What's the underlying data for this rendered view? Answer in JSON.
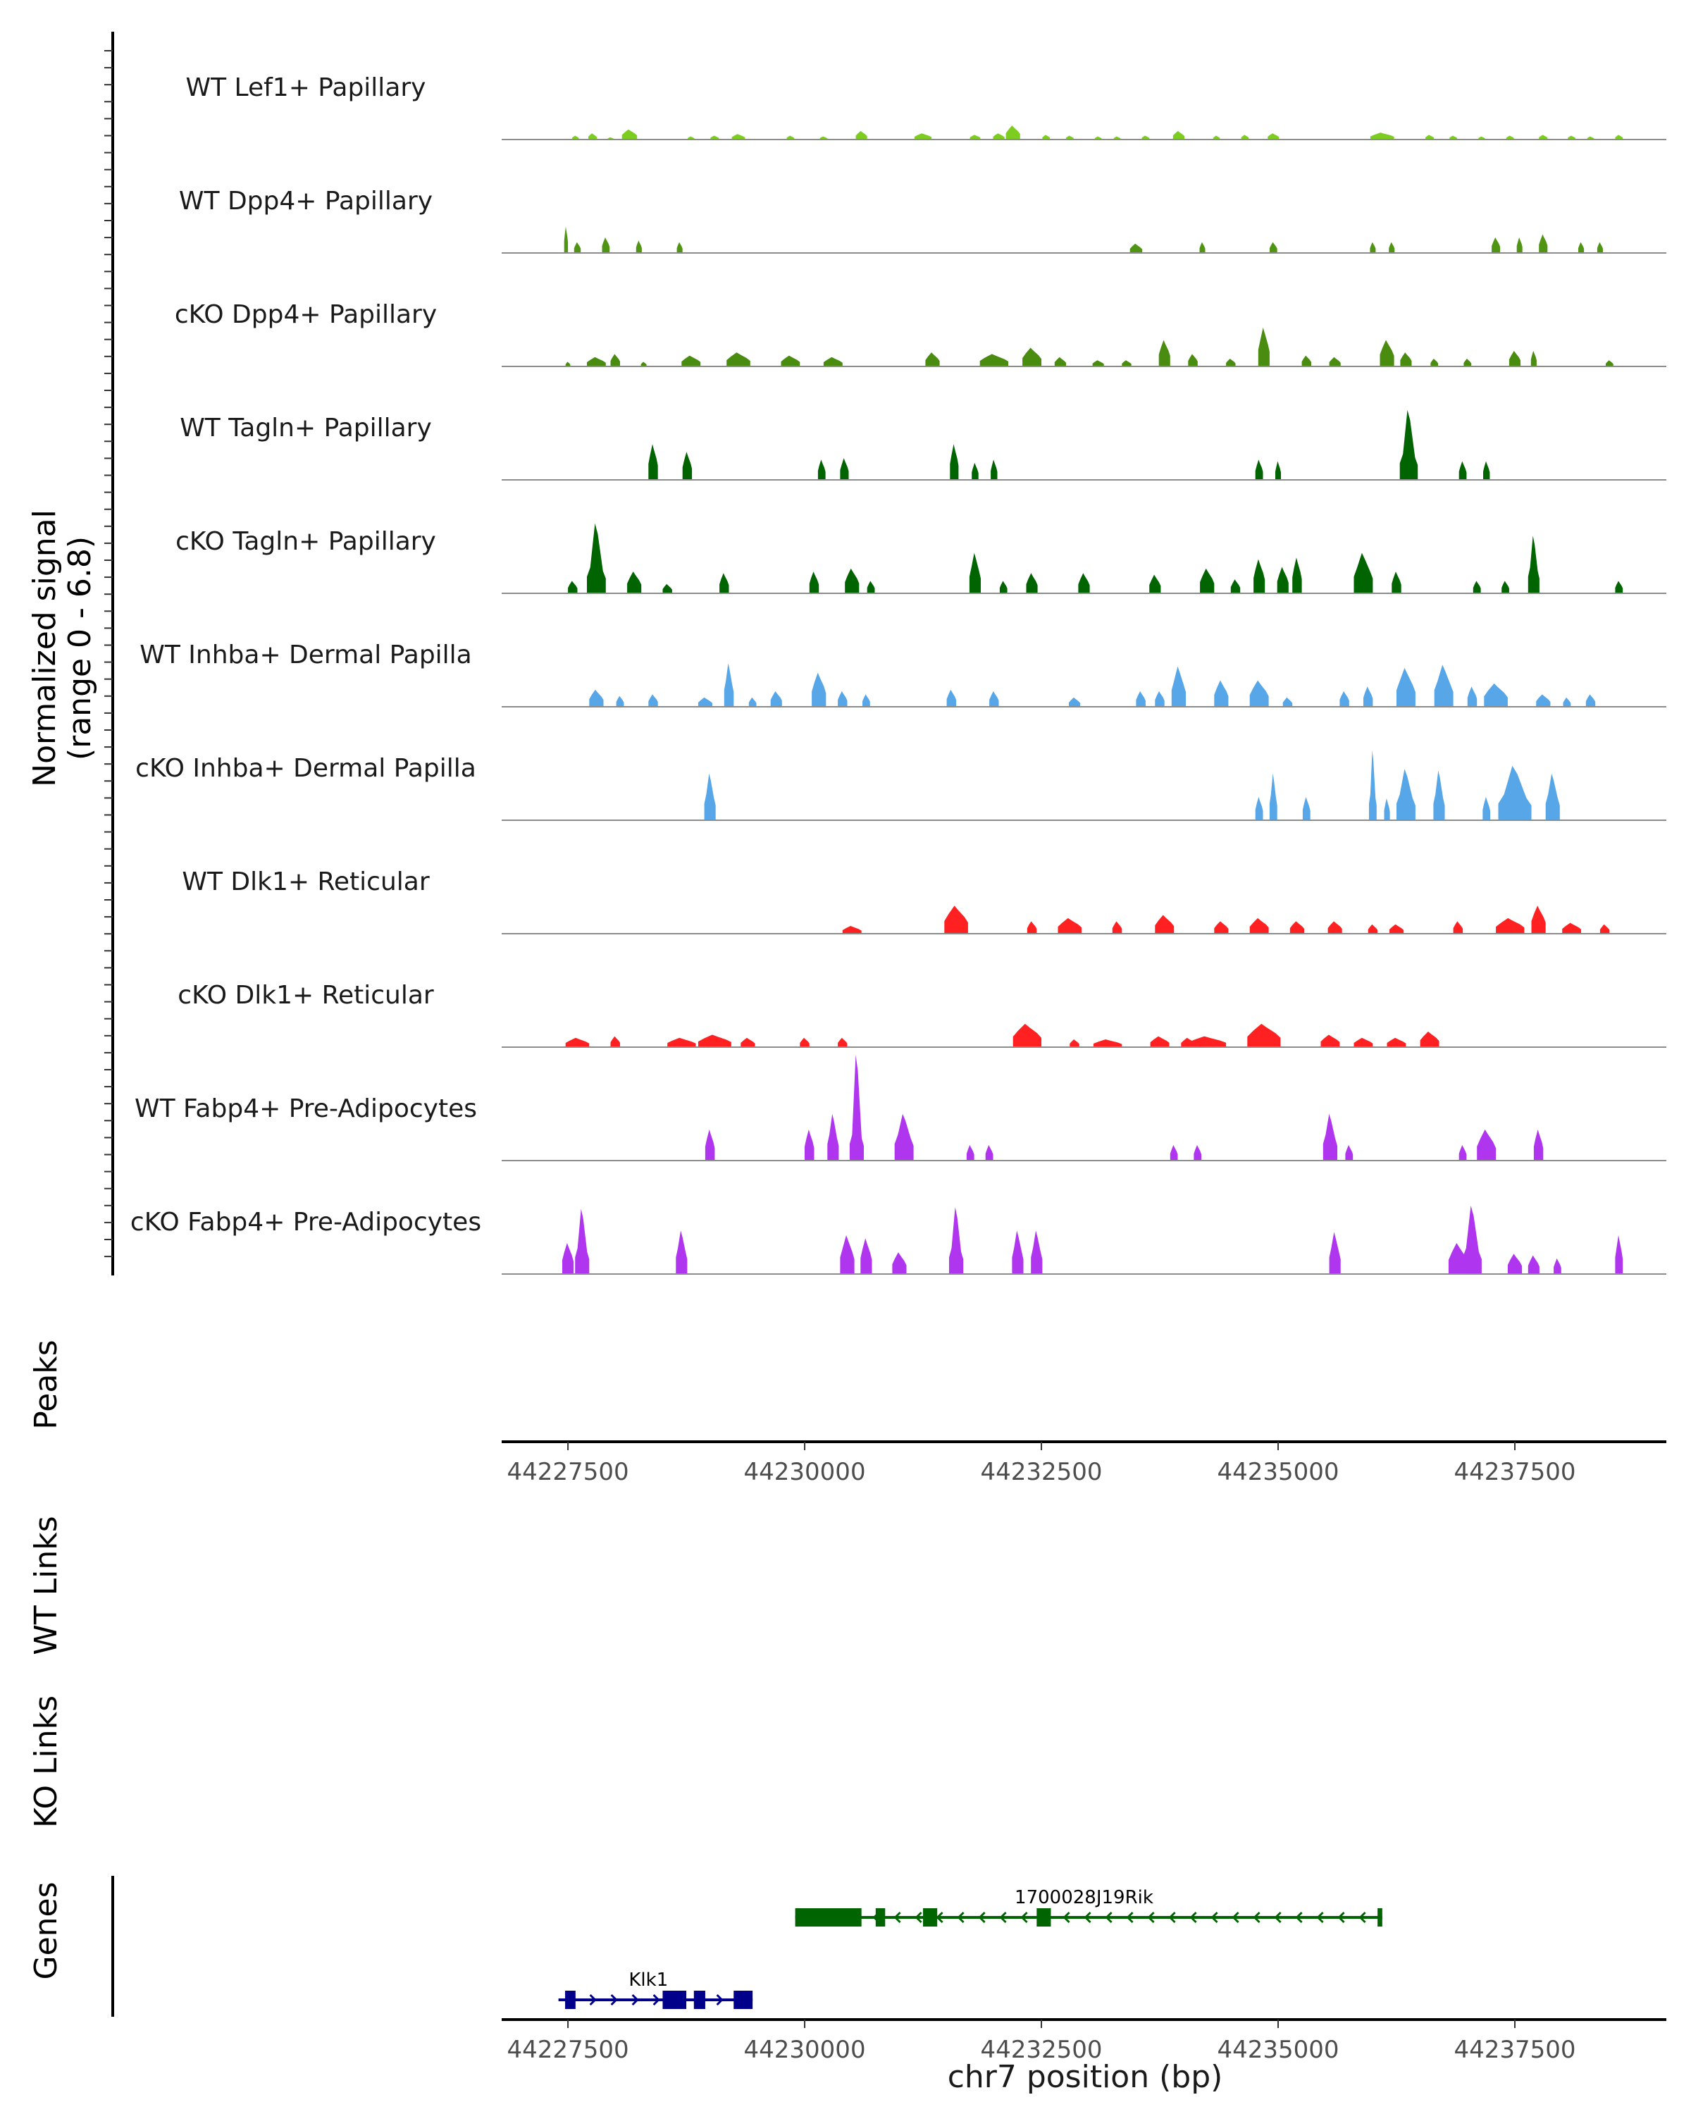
{
  "chart_data": {
    "type": "area",
    "subtype": "genome-coverage-plot",
    "y_axis_label_line1": "Normalized signal",
    "y_axis_label_line2": "(range 0 - 6.8)",
    "y_range": [
      0,
      6.8
    ],
    "x_label": "chr7 position (bp)",
    "x_range": [
      44226800,
      44239100
    ],
    "x_ticks": [
      44227500,
      44230000,
      44232500,
      44235000,
      44237500
    ],
    "tracks": [
      {
        "name": "WT Lef1+ Papillary",
        "color": "#7ccd1f",
        "peaks": [
          [
            44227580,
            0.25,
            70
          ],
          [
            44227760,
            0.4,
            90
          ],
          [
            44227950,
            0.15,
            60
          ],
          [
            44228150,
            0.65,
            160
          ],
          [
            44228800,
            0.2,
            70
          ],
          [
            44229050,
            0.25,
            90
          ],
          [
            44229300,
            0.35,
            140
          ],
          [
            44229850,
            0.25,
            80
          ],
          [
            44230200,
            0.2,
            80
          ],
          [
            44230600,
            0.55,
            120
          ],
          [
            44231250,
            0.4,
            180
          ],
          [
            44231800,
            0.3,
            110
          ],
          [
            44232050,
            0.4,
            120
          ],
          [
            44232200,
            0.9,
            150
          ],
          [
            44232550,
            0.3,
            80
          ],
          [
            44232800,
            0.25,
            80
          ],
          [
            44233100,
            0.2,
            70
          ],
          [
            44233300,
            0.2,
            70
          ],
          [
            44233600,
            0.25,
            80
          ],
          [
            44233950,
            0.55,
            120
          ],
          [
            44234350,
            0.25,
            70
          ],
          [
            44234650,
            0.3,
            80
          ],
          [
            44234950,
            0.4,
            120
          ],
          [
            44236100,
            0.45,
            250
          ],
          [
            44236600,
            0.3,
            90
          ],
          [
            44236850,
            0.25,
            80
          ],
          [
            44237150,
            0.2,
            70
          ],
          [
            44237450,
            0.25,
            80
          ],
          [
            44237800,
            0.3,
            90
          ],
          [
            44238100,
            0.25,
            80
          ],
          [
            44238300,
            0.2,
            70
          ],
          [
            44238600,
            0.3,
            80
          ]
        ]
      },
      {
        "name": "WT Dpp4+ Papillary",
        "color": "#4f9412",
        "peaks": [
          [
            44227480,
            1.7,
            40
          ],
          [
            44227600,
            0.7,
            70
          ],
          [
            44227900,
            1.0,
            80
          ],
          [
            44228250,
            0.8,
            60
          ],
          [
            44228680,
            0.7,
            60
          ],
          [
            44233500,
            0.6,
            130
          ],
          [
            44234200,
            0.7,
            60
          ],
          [
            44234950,
            0.7,
            80
          ],
          [
            44236000,
            0.7,
            60
          ],
          [
            44236200,
            0.7,
            60
          ],
          [
            44237300,
            1.0,
            90
          ],
          [
            44237550,
            1.0,
            60
          ],
          [
            44237800,
            1.2,
            90
          ],
          [
            44238200,
            0.7,
            60
          ],
          [
            44238400,
            0.7,
            60
          ]
        ]
      },
      {
        "name": "cKO Dpp4+ Papillary",
        "color": "#4a8c10",
        "peaks": [
          [
            44227500,
            0.3,
            50
          ],
          [
            44227800,
            0.6,
            200
          ],
          [
            44228000,
            0.8,
            100
          ],
          [
            44228300,
            0.3,
            60
          ],
          [
            44228800,
            0.7,
            200
          ],
          [
            44229300,
            0.9,
            250
          ],
          [
            44229850,
            0.7,
            200
          ],
          [
            44230300,
            0.6,
            200
          ],
          [
            44231350,
            0.9,
            150
          ],
          [
            44232000,
            0.8,
            300
          ],
          [
            44232400,
            1.2,
            200
          ],
          [
            44232700,
            0.6,
            120
          ],
          [
            44233100,
            0.4,
            120
          ],
          [
            44233400,
            0.4,
            100
          ],
          [
            44233800,
            1.7,
            120
          ],
          [
            44234100,
            0.8,
            100
          ],
          [
            44234500,
            0.5,
            100
          ],
          [
            44234850,
            2.5,
            120
          ],
          [
            44235300,
            0.7,
            100
          ],
          [
            44235600,
            0.6,
            120
          ],
          [
            44236150,
            1.7,
            150
          ],
          [
            44236350,
            0.9,
            120
          ],
          [
            44236650,
            0.5,
            80
          ],
          [
            44237000,
            0.5,
            80
          ],
          [
            44237500,
            1.0,
            120
          ],
          [
            44237700,
            1.0,
            60
          ],
          [
            44238500,
            0.4,
            80
          ]
        ]
      },
      {
        "name": "WT Tagln+ Papillary",
        "color": "#006400",
        "peaks": [
          [
            44228400,
            2.3,
            100
          ],
          [
            44228760,
            1.8,
            100
          ],
          [
            44230180,
            1.3,
            80
          ],
          [
            44230420,
            1.4,
            90
          ],
          [
            44231580,
            2.3,
            90
          ],
          [
            44231800,
            1.1,
            70
          ],
          [
            44232000,
            1.3,
            70
          ],
          [
            44234800,
            1.3,
            80
          ],
          [
            44235000,
            1.2,
            60
          ],
          [
            44236380,
            4.5,
            190
          ],
          [
            44236950,
            1.2,
            80
          ],
          [
            44237200,
            1.2,
            70
          ]
        ]
      },
      {
        "name": "cKO Tagln+ Papillary",
        "color": "#006400",
        "peaks": [
          [
            44227550,
            0.8,
            100
          ],
          [
            44227800,
            4.5,
            200
          ],
          [
            44228200,
            1.4,
            150
          ],
          [
            44228550,
            0.6,
            100
          ],
          [
            44229150,
            1.3,
            100
          ],
          [
            44230100,
            1.4,
            100
          ],
          [
            44230500,
            1.6,
            150
          ],
          [
            44230700,
            0.8,
            80
          ],
          [
            44231800,
            2.6,
            120
          ],
          [
            44232100,
            0.8,
            80
          ],
          [
            44232400,
            1.3,
            120
          ],
          [
            44232950,
            1.3,
            120
          ],
          [
            44233700,
            1.2,
            120
          ],
          [
            44234250,
            1.6,
            150
          ],
          [
            44234550,
            0.9,
            100
          ],
          [
            44234800,
            2.2,
            120
          ],
          [
            44235050,
            1.7,
            120
          ],
          [
            44235200,
            2.3,
            100
          ],
          [
            44235900,
            2.6,
            200
          ],
          [
            44236250,
            1.4,
            100
          ],
          [
            44237100,
            0.8,
            80
          ],
          [
            44237400,
            0.8,
            80
          ],
          [
            44237700,
            3.7,
            120
          ],
          [
            44238600,
            0.8,
            80
          ]
        ]
      },
      {
        "name": "WT Inhba+ Dermal Papilla",
        "color": "#56a6e8",
        "peaks": [
          [
            44227800,
            1.1,
            150
          ],
          [
            44228050,
            0.7,
            80
          ],
          [
            44228400,
            0.8,
            100
          ],
          [
            44228950,
            0.6,
            150
          ],
          [
            44229200,
            2.8,
            100
          ],
          [
            44229450,
            0.6,
            80
          ],
          [
            44229700,
            1.0,
            120
          ],
          [
            44230150,
            2.2,
            150
          ],
          [
            44230400,
            1.0,
            100
          ],
          [
            44230650,
            0.8,
            80
          ],
          [
            44231550,
            1.1,
            100
          ],
          [
            44232000,
            1.0,
            100
          ],
          [
            44232850,
            0.6,
            120
          ],
          [
            44233550,
            1.0,
            100
          ],
          [
            44233750,
            1.0,
            100
          ],
          [
            44233950,
            2.6,
            150
          ],
          [
            44234400,
            1.7,
            150
          ],
          [
            44234800,
            1.7,
            200
          ],
          [
            44235100,
            0.6,
            100
          ],
          [
            44235700,
            1.0,
            100
          ],
          [
            44235950,
            1.3,
            100
          ],
          [
            44236350,
            2.5,
            200
          ],
          [
            44236750,
            2.7,
            200
          ],
          [
            44237050,
            1.3,
            100
          ],
          [
            44237300,
            1.5,
            250
          ],
          [
            44237800,
            0.8,
            150
          ],
          [
            44238050,
            0.6,
            80
          ],
          [
            44238300,
            0.8,
            100
          ]
        ]
      },
      {
        "name": "cKO Inhba+ Dermal Papilla",
        "color": "#56a6e8",
        "peaks": [
          [
            44229000,
            3.0,
            120
          ],
          [
            44234800,
            1.5,
            80
          ],
          [
            44234950,
            3.0,
            80
          ],
          [
            44235300,
            1.5,
            80
          ],
          [
            44236000,
            4.5,
            80
          ],
          [
            44236150,
            1.4,
            60
          ],
          [
            44236350,
            3.3,
            200
          ],
          [
            44236700,
            3.2,
            120
          ],
          [
            44237200,
            1.5,
            80
          ],
          [
            44237500,
            3.5,
            350
          ],
          [
            44237900,
            3.0,
            150
          ]
        ]
      },
      {
        "name": "WT Dlk1+ Reticular",
        "color": "#ff2121",
        "peaks": [
          [
            44230500,
            0.5,
            200
          ],
          [
            44231600,
            1.8,
            250
          ],
          [
            44232400,
            0.8,
            100
          ],
          [
            44232800,
            1.0,
            250
          ],
          [
            44233300,
            0.8,
            100
          ],
          [
            44233800,
            1.2,
            200
          ],
          [
            44234400,
            0.8,
            150
          ],
          [
            44234800,
            1.0,
            200
          ],
          [
            44235200,
            0.8,
            150
          ],
          [
            44235600,
            0.8,
            150
          ],
          [
            44236000,
            0.6,
            100
          ],
          [
            44236250,
            0.6,
            150
          ],
          [
            44236900,
            0.8,
            100
          ],
          [
            44237450,
            1.0,
            300
          ],
          [
            44237750,
            1.8,
            150
          ],
          [
            44238100,
            0.7,
            200
          ],
          [
            44238450,
            0.6,
            100
          ]
        ]
      },
      {
        "name": "cKO Dlk1+ Reticular",
        "color": "#ff2121",
        "peaks": [
          [
            44227600,
            0.6,
            250
          ],
          [
            44228000,
            0.7,
            100
          ],
          [
            44228700,
            0.6,
            300
          ],
          [
            44229050,
            0.8,
            350
          ],
          [
            44229400,
            0.6,
            150
          ],
          [
            44230000,
            0.6,
            100
          ],
          [
            44230400,
            0.6,
            100
          ],
          [
            44232350,
            1.5,
            300
          ],
          [
            44232850,
            0.5,
            100
          ],
          [
            44233200,
            0.5,
            300
          ],
          [
            44233750,
            0.7,
            200
          ],
          [
            44234050,
            0.6,
            150
          ],
          [
            44234250,
            0.7,
            400
          ],
          [
            44234850,
            1.5,
            350
          ],
          [
            44235550,
            0.8,
            200
          ],
          [
            44235900,
            0.6,
            200
          ],
          [
            44236250,
            0.6,
            200
          ],
          [
            44236600,
            1.0,
            200
          ]
        ]
      },
      {
        "name": "WT Fabp4+ Pre-Adipocytes",
        "color": "#b035ef",
        "peaks": [
          [
            44229000,
            2.0,
            100
          ],
          [
            44230050,
            2.0,
            100
          ],
          [
            44230300,
            3.0,
            120
          ],
          [
            44230550,
            6.8,
            150
          ],
          [
            44231050,
            3.0,
            200
          ],
          [
            44231750,
            1.0,
            80
          ],
          [
            44231950,
            1.0,
            80
          ],
          [
            44233900,
            1.0,
            80
          ],
          [
            44234150,
            1.0,
            80
          ],
          [
            44235550,
            3.0,
            150
          ],
          [
            44235750,
            1.0,
            80
          ],
          [
            44236950,
            1.0,
            80
          ],
          [
            44237200,
            2.0,
            200
          ],
          [
            44237750,
            2.0,
            100
          ]
        ]
      },
      {
        "name": "cKO Fabp4+ Pre-Adipocytes",
        "color": "#b035ef",
        "peaks": [
          [
            44227500,
            2.0,
            120
          ],
          [
            44227650,
            4.2,
            150
          ],
          [
            44228700,
            2.8,
            120
          ],
          [
            44230450,
            2.5,
            150
          ],
          [
            44230650,
            2.3,
            120
          ],
          [
            44231000,
            1.4,
            150
          ],
          [
            44231600,
            4.3,
            150
          ],
          [
            44232250,
            2.8,
            120
          ],
          [
            44232450,
            2.8,
            120
          ],
          [
            44235600,
            2.7,
            120
          ],
          [
            44236900,
            2.0,
            200
          ],
          [
            44237050,
            4.4,
            200
          ],
          [
            44237500,
            1.3,
            150
          ],
          [
            44237700,
            1.2,
            120
          ],
          [
            44237950,
            1.0,
            80
          ],
          [
            44238600,
            2.5,
            80
          ]
        ]
      }
    ],
    "side_labels": [
      "Peaks",
      "WT Links",
      "KO Links",
      "Genes"
    ],
    "genes": [
      {
        "name": "1700028J19Rik",
        "color": "#006400",
        "strand": "-",
        "start": 44229900,
        "end": 44236100,
        "exons": [
          [
            44229900,
            44230600
          ],
          [
            44230750,
            44230850
          ],
          [
            44231250,
            44231400
          ],
          [
            44232450,
            44232600
          ],
          [
            44236050,
            44236100
          ]
        ]
      },
      {
        "name": "Klk1",
        "color": "#00008b",
        "strand": "+",
        "start": 44227400,
        "end": 44229450,
        "exons": [
          [
            44227470,
            44227580
          ],
          [
            44228500,
            44228750
          ],
          [
            44228830,
            44228950
          ],
          [
            44229250,
            44229450
          ]
        ]
      }
    ]
  }
}
